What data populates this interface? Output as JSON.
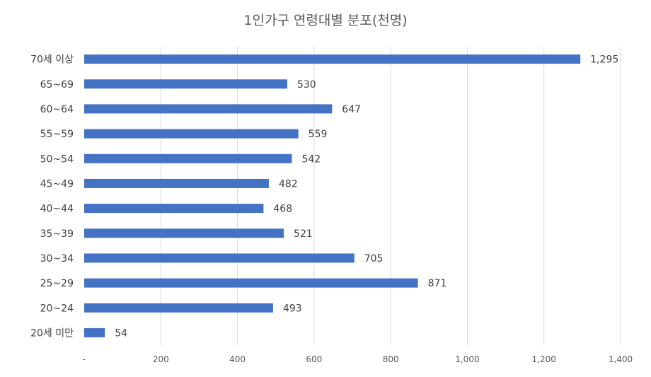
{
  "chart_data": {
    "type": "bar",
    "orientation": "horizontal",
    "title": "1인가구 연령대별 분포(천명)",
    "categories": [
      "70세 이상",
      "65~69",
      "60~64",
      "55~59",
      "50~54",
      "45~49",
      "40~44",
      "35~39",
      "30~34",
      "25~29",
      "20~24",
      "20세 미만"
    ],
    "values": [
      1295,
      530,
      647,
      559,
      542,
      482,
      468,
      521,
      705,
      871,
      493,
      54
    ],
    "value_labels": [
      "1,295",
      "530",
      "647",
      "559",
      "542",
      "482",
      "468",
      "521",
      "705",
      "871",
      "493",
      "54"
    ],
    "xlim": [
      0,
      1400
    ],
    "xticks": [
      0,
      200,
      400,
      600,
      800,
      1000,
      1200,
      1400
    ],
    "xtick_labels": [
      "-",
      "200",
      "400",
      "600",
      "800",
      "1,000",
      "1,200",
      "1,400"
    ],
    "grid": "vertical",
    "bar_color": "#4472C4",
    "grid_color": "#D9D9D9"
  }
}
